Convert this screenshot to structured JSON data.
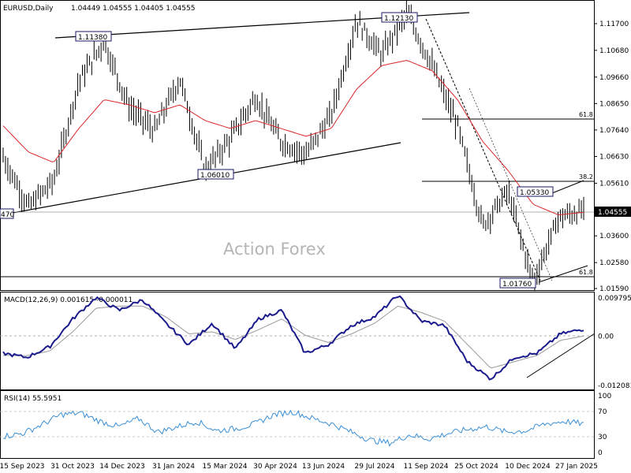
{
  "header": {
    "symbol": "EURUSD,Daily",
    "ohlc": "1.04449 1.04555 1.04405 1.04555"
  },
  "watermark": "Action Forex",
  "current_price_label": "1.04555",
  "annotations": {
    "high_1": "1.11380",
    "high_2": "1.12130",
    "low_mid": "1.06010",
    "left_cut": "470",
    "swing_high": "1.05330",
    "low_final": "1.01760",
    "fib_618_top": "61.8",
    "fib_382": "38.2",
    "fib_618_bottom": "61.8"
  },
  "macd": {
    "label": "MACD(12,26,9) 0.001615 -0.000011",
    "ticks": [
      "0.009795",
      "0.00",
      "-0.012081"
    ]
  },
  "rsi": {
    "label": "RSI(14) 55.5951",
    "ticks": [
      "100",
      "70",
      "30",
      "0"
    ]
  },
  "colors": {
    "price": "#000000",
    "ma": "#d9262a",
    "macd": "#1a1a8c",
    "signal": "#888888",
    "rsi": "#3a8fd6"
  },
  "chart_data": [
    {
      "type": "line",
      "title": "EURUSD,Daily",
      "ylim": [
        1.0159,
        1.1215
      ],
      "y_ticks": [
        "1.11700",
        "1.10680",
        "1.09660",
        "1.08650",
        "1.07640",
        "1.06630",
        "1.05610",
        "1.04555",
        "1.03600",
        "1.02580",
        "1.01590"
      ],
      "x_ticks": [
        "15 Sep 2023",
        "31 Oct 2023",
        "14 Dec 2023",
        "31 Jan 2024",
        "15 Mar 2024",
        "30 Apr 2024",
        "13 Jun 2024",
        "29 Jul 2024",
        "11 Sep 2024",
        "25 Oct 2024",
        "10 Dec 2024",
        "27 Jan 2025"
      ],
      "series": [
        {
          "x": [
            "15 Sep 2023",
            "03 Oct 2023",
            "31 Oct 2023",
            "21 Nov 2023",
            "28 Dec 2023",
            "31 Jan 2024",
            "14 Feb 2024",
            "08 Mar 2024",
            "15 Apr 2024",
            "30 Apr 2024",
            "28 May 2024",
            "13 Jun 2024",
            "26 Jun 2024",
            "29 Jul 2024",
            "26 Aug 2024",
            "11 Sep 2024",
            "25 Sep 2024",
            "02 Oct 2024",
            "25 Oct 2024",
            "22 Nov 2024",
            "10 Dec 2024",
            "13 Jan 2025",
            "27 Jan 2025",
            "10 Feb 2025"
          ],
          "values": [
            1.066,
            1.047,
            1.057,
            1.095,
            1.11,
            1.085,
            1.076,
            1.096,
            1.061,
            1.073,
            1.089,
            1.072,
            1.067,
            1.082,
            1.118,
            1.105,
            1.121,
            1.101,
            1.078,
            1.04,
            1.053,
            1.018,
            1.043,
            1.0455
          ]
        },
        {
          "values": [
            1.078,
            1.068,
            1.064,
            1.077,
            1.088,
            1.086,
            1.083,
            1.086,
            1.08,
            1.077,
            1.08,
            1.077,
            1.074,
            1.077,
            1.092,
            1.101,
            1.103,
            1.099,
            1.088,
            1.072,
            1.061,
            1.048,
            1.044,
            1.045
          ]
        }
      ]
    },
    {
      "type": "line",
      "title": "MACD(12,26,9) 0.001615 -0.000011",
      "ylim": [
        -0.012081,
        0.009795
      ],
      "series": [
        {
          "values": [
            -0.004,
            -0.005,
            -0.0025,
            0.004,
            0.009,
            0.006,
            0.0085,
            0.003,
            -0.002,
            0.003,
            -0.003,
            0.004,
            0.006,
            -0.004,
            -0.002,
            0.0025,
            0.0045,
            0.0095,
            0.0035,
            0.0025,
            -0.006,
            -0.01,
            -0.005,
            -0.004,
            0.0005,
            0.0016
          ]
        },
        {
          "values": [
            -0.0045,
            -0.0046,
            -0.0035,
            0.001,
            0.0065,
            0.007,
            0.007,
            0.0045,
            0.0005,
            0.001,
            -0.0008,
            0.0015,
            0.004,
            0.0002,
            -0.0015,
            0.0005,
            0.003,
            0.007,
            0.0055,
            0.0035,
            -0.002,
            -0.0075,
            -0.006,
            -0.0045,
            -0.001,
            -0.0
          ]
        }
      ]
    },
    {
      "type": "line",
      "title": "RSI(14) 55.5951",
      "ylim": [
        0,
        100
      ],
      "y_ticks": [
        "100",
        "70",
        "30",
        "0"
      ],
      "series": [
        {
          "values": [
            38,
            42,
            55,
            70,
            72,
            60,
            52,
            64,
            44,
            52,
            60,
            46,
            49,
            56,
            70,
            74,
            64,
            56,
            44,
            32,
            28,
            40,
            34,
            42,
            48,
            52,
            44,
            46,
            56,
            60,
            56
          ]
        }
      ]
    }
  ]
}
